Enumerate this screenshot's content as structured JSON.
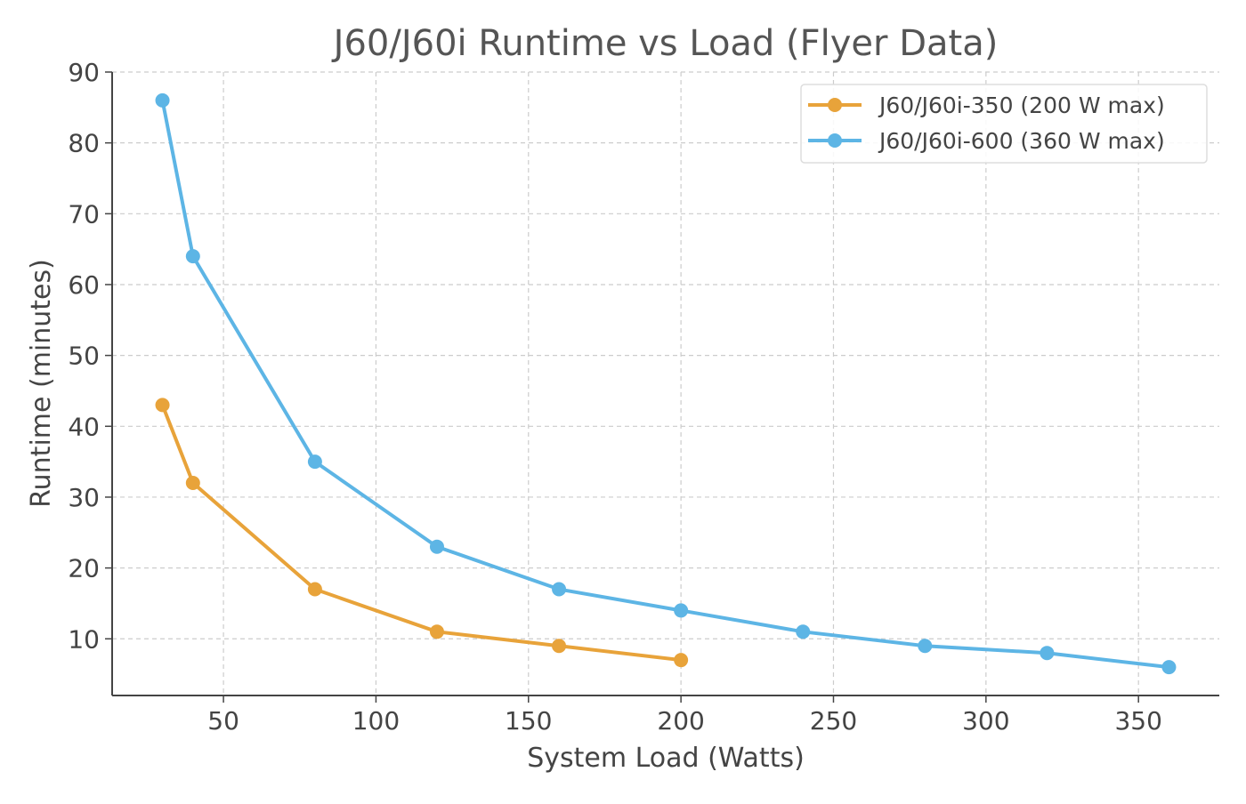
{
  "chart_data": {
    "type": "line",
    "title": "J60/J60i Runtime vs Load (Flyer Data)",
    "xlabel": "System Load (Watts)",
    "ylabel": "Runtime (minutes)",
    "xlim": [
      13.5,
      376.5
    ],
    "ylim": [
      2,
      90
    ],
    "xticks": [
      50,
      100,
      150,
      200,
      250,
      300,
      350
    ],
    "yticks": [
      10,
      20,
      30,
      40,
      50,
      60,
      70,
      80,
      90
    ],
    "grid": true,
    "legend_position": "top-right",
    "series": [
      {
        "name": "J60/J60i-350 (200 W max)",
        "color": "#E8A33A",
        "x": [
          30,
          40,
          80,
          120,
          160,
          200
        ],
        "y": [
          43,
          32,
          17,
          11,
          9,
          7
        ]
      },
      {
        "name": "J60/J60i-600 (360 W max)",
        "color": "#5DB5E5",
        "x": [
          30,
          40,
          80,
          120,
          160,
          200,
          240,
          280,
          320,
          360
        ],
        "y": [
          86,
          64,
          35,
          23,
          17,
          14,
          11,
          9,
          8,
          6
        ]
      }
    ]
  }
}
